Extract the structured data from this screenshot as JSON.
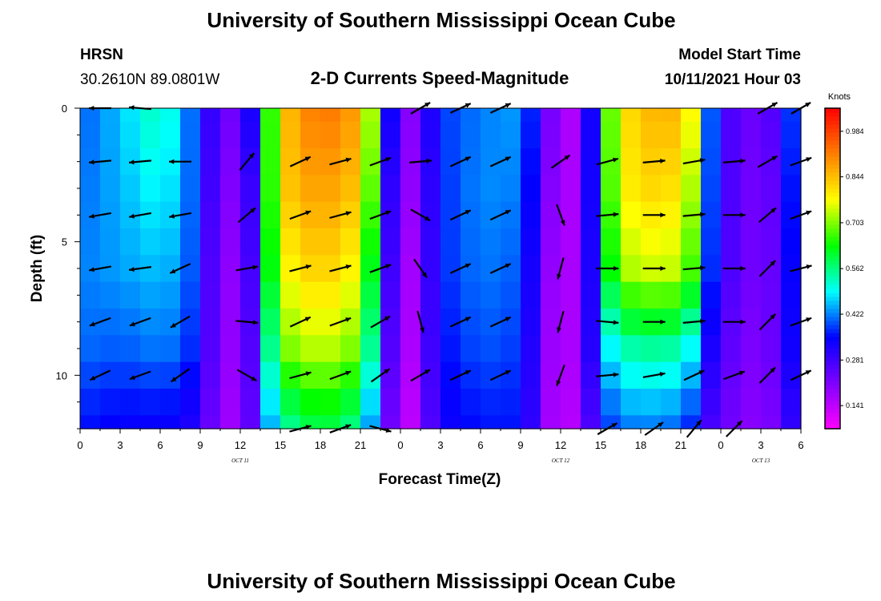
{
  "header": {
    "title": "University of Southern Mississippi Ocean Cube",
    "station": "HRSN",
    "coordinates": "30.2610N  89.0801W",
    "subtitle": "2-D Currents Speed-Magnitude",
    "model_label": "Model Start Time",
    "model_time": "10/11/2021 Hour 03"
  },
  "footer": {
    "title": "University of Southern Mississippi Ocean Cube"
  },
  "chart_data": {
    "type": "heatmap",
    "title": "2-D Currents Speed-Magnitude",
    "xlabel": "Forecast Time(Z)",
    "ylabel": "Depth (ft)",
    "x_range": [
      0,
      54
    ],
    "y_range": [
      0,
      12
    ],
    "x_tick_labels": [
      "0",
      "3",
      "6",
      "9",
      "12",
      "15",
      "18",
      "21",
      "0",
      "3",
      "6",
      "9",
      "12",
      "15",
      "18",
      "21",
      "0",
      "3",
      "6"
    ],
    "y_tick_labels": [
      "0",
      "5",
      "10"
    ],
    "y_tick_values": [
      0,
      5,
      10
    ],
    "day_labels": [
      {
        "text": "OCT  11",
        "hour": 12
      },
      {
        "text": "OCT  12",
        "hour": 36
      },
      {
        "text": "OCT  13",
        "hour": 51
      }
    ],
    "colorbar": {
      "unit": "Knots",
      "min": 0.07,
      "max": 1.055,
      "ticks": [
        "0.141",
        "0.281",
        "0.422",
        "0.562",
        "0.703",
        "0.844",
        "0.984"
      ],
      "tick_values": [
        0.141,
        0.281,
        0.422,
        0.562,
        0.703,
        0.844,
        0.984
      ],
      "colors": [
        "#ff00ff",
        "#7f00ff",
        "#0000ff",
        "#00ffff",
        "#00ff00",
        "#ffff00",
        "#ff7f00",
        "#ff0000"
      ]
    },
    "depth_bins": [
      0,
      0.5,
      1.5,
      2.5,
      3.5,
      4.5,
      5.5,
      6.5,
      7.5,
      8.5,
      9.5,
      10.5,
      11.5
    ],
    "speed_profiles": {
      "depth_anchors": [
        0,
        3,
        6,
        9,
        12
      ],
      "hour_anchors": [
        0,
        3,
        6,
        8,
        9,
        10.5,
        12,
        13.5,
        14.5,
        16,
        18,
        20,
        21.5,
        22.5,
        24,
        25,
        26,
        27,
        30,
        33,
        34.5,
        36,
        37.5,
        39,
        40,
        42,
        45,
        46.5,
        47.5,
        49,
        51,
        52.5,
        54
      ],
      "rows": [
        [
          0.4,
          0.46,
          0.54,
          0.44,
          0.33,
          0.26,
          0.2,
          0.45,
          0.73,
          0.88,
          0.93,
          0.9,
          0.82,
          0.45,
          0.22,
          0.2,
          0.3,
          0.38,
          0.42,
          0.44,
          0.3,
          0.14,
          0.18,
          0.48,
          0.76,
          0.85,
          0.86,
          0.7,
          0.3,
          0.26,
          0.22,
          0.3,
          0.46
        ],
        [
          0.41,
          0.45,
          0.5,
          0.44,
          0.32,
          0.24,
          0.18,
          0.4,
          0.74,
          0.86,
          0.88,
          0.86,
          0.78,
          0.4,
          0.2,
          0.19,
          0.28,
          0.37,
          0.43,
          0.42,
          0.28,
          0.13,
          0.2,
          0.46,
          0.75,
          0.82,
          0.8,
          0.66,
          0.3,
          0.26,
          0.21,
          0.28,
          0.44
        ],
        [
          0.42,
          0.44,
          0.46,
          0.43,
          0.31,
          0.22,
          0.17,
          0.38,
          0.71,
          0.8,
          0.83,
          0.8,
          0.7,
          0.38,
          0.18,
          0.17,
          0.27,
          0.37,
          0.42,
          0.4,
          0.26,
          0.12,
          0.21,
          0.43,
          0.7,
          0.75,
          0.74,
          0.6,
          0.3,
          0.26,
          0.21,
          0.27,
          0.42
        ],
        [
          0.41,
          0.4,
          0.42,
          0.4,
          0.3,
          0.22,
          0.16,
          0.36,
          0.62,
          0.72,
          0.74,
          0.72,
          0.62,
          0.35,
          0.17,
          0.16,
          0.26,
          0.35,
          0.4,
          0.38,
          0.25,
          0.11,
          0.22,
          0.4,
          0.52,
          0.55,
          0.54,
          0.45,
          0.28,
          0.24,
          0.2,
          0.27,
          0.4
        ],
        [
          0.36,
          0.34,
          0.34,
          0.33,
          0.27,
          0.2,
          0.15,
          0.34,
          0.48,
          0.56,
          0.6,
          0.57,
          0.48,
          0.3,
          0.15,
          0.14,
          0.24,
          0.33,
          0.36,
          0.36,
          0.24,
          0.1,
          0.2,
          0.33,
          0.4,
          0.42,
          0.4,
          0.33,
          0.25,
          0.22,
          0.19,
          0.24,
          0.35
        ]
      ]
    },
    "vectors": {
      "depths": [
        0,
        2,
        4,
        6,
        8,
        10,
        12
      ],
      "columns": [
        {
          "hour": 1.5,
          "dirs": [
            270,
            265,
            260,
            260,
            250,
            245,
            null
          ]
        },
        {
          "hour": 4.5,
          "dirs": [
            275,
            265,
            260,
            262,
            250,
            250,
            null
          ]
        },
        {
          "hour": 7.5,
          "dirs": [
            null,
            270,
            260,
            245,
            240,
            235,
            null
          ]
        },
        {
          "hour": 12.5,
          "dirs": [
            null,
            40,
            50,
            80,
            95,
            120,
            null
          ]
        },
        {
          "hour": 16.5,
          "dirs": [
            null,
            65,
            70,
            75,
            65,
            75,
            75
          ]
        },
        {
          "hour": 19.5,
          "dirs": [
            null,
            75,
            75,
            75,
            70,
            70,
            70
          ]
        },
        {
          "hour": 22.5,
          "dirs": [
            null,
            70,
            70,
            70,
            60,
            55,
            105
          ]
        },
        {
          "hour": 25.5,
          "dirs": [
            60,
            85,
            120,
            145,
            165,
            60,
            null
          ]
        },
        {
          "hour": 28.5,
          "dirs": [
            65,
            65,
            65,
            65,
            65,
            65,
            null
          ]
        },
        {
          "hour": 31.5,
          "dirs": [
            65,
            65,
            65,
            65,
            65,
            65,
            null
          ]
        },
        {
          "hour": 36,
          "dirs": [
            null,
            55,
            160,
            195,
            195,
            200,
            null
          ]
        },
        {
          "hour": 39.5,
          "dirs": [
            null,
            75,
            85,
            90,
            95,
            85,
            60
          ]
        },
        {
          "hour": 43,
          "dirs": [
            null,
            85,
            90,
            90,
            90,
            80,
            55
          ]
        },
        {
          "hour": 46,
          "dirs": [
            null,
            80,
            85,
            85,
            85,
            65,
            40
          ]
        },
        {
          "hour": 49,
          "dirs": [
            null,
            85,
            90,
            90,
            90,
            70,
            45
          ]
        },
        {
          "hour": 51.5,
          "dirs": [
            60,
            60,
            50,
            45,
            45,
            45,
            null
          ]
        },
        {
          "hour": 54,
          "dirs": [
            60,
            70,
            70,
            75,
            70,
            65,
            null
          ]
        }
      ]
    }
  }
}
